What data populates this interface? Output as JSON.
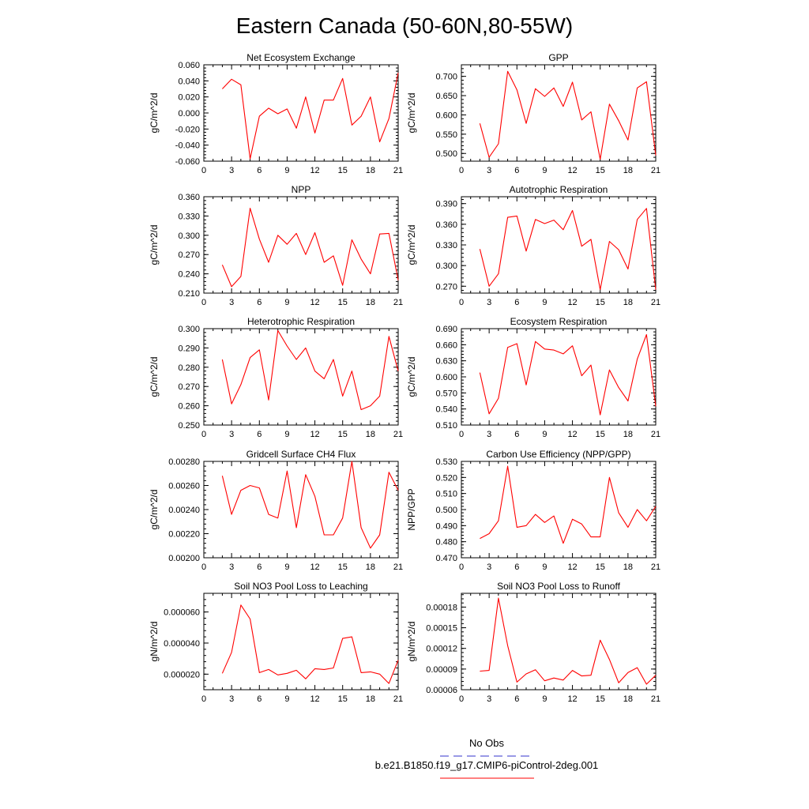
{
  "figure": {
    "title": "Eastern Canada (50-60N,80-55W)",
    "legend": {
      "placement": "bottom-right",
      "entries": [
        {
          "label": "No Obs",
          "color": "#3333cc",
          "dashed": true
        },
        {
          "label": "b.e21.B1850.f19_g17.CMIP6-piControl-2deg.001",
          "color": "#ff0000",
          "dashed": false
        }
      ]
    }
  },
  "chart_data": [
    {
      "type": "line",
      "title": "Net Ecosystem Exchange",
      "ylabel": "gC/m^2/d",
      "xlim": [
        0,
        21
      ],
      "xticks": [
        "0",
        "3",
        "6",
        "9",
        "12",
        "15",
        "18",
        "21"
      ],
      "ylim": [
        -0.06,
        0.06
      ],
      "yticks": [
        "-0.060",
        "-0.040",
        "-0.020",
        "0.000",
        "0.020",
        "0.040",
        "0.060"
      ],
      "series": [
        {
          "color": "#ff0000",
          "x": [
            2,
            3,
            4,
            5,
            6,
            7,
            8,
            9,
            10,
            11,
            12,
            13,
            14,
            15,
            16,
            17,
            18,
            19,
            20,
            21
          ],
          "y": [
            0.03,
            0.042,
            0.035,
            -0.057,
            -0.004,
            0.006,
            -0.001,
            0.005,
            -0.019,
            0.02,
            -0.025,
            0.016,
            0.016,
            0.043,
            -0.015,
            -0.004,
            0.02,
            -0.036,
            -0.007,
            0.05
          ]
        }
      ]
    },
    {
      "type": "line",
      "title": "GPP",
      "ylabel": "gC/m^2/d",
      "xlim": [
        0,
        21
      ],
      "xticks": [
        "0",
        "3",
        "6",
        "9",
        "12",
        "15",
        "18",
        "21"
      ],
      "ylim": [
        0.48,
        0.73
      ],
      "yticks": [
        "0.500",
        "0.550",
        "0.600",
        "0.650",
        "0.700"
      ],
      "series": [
        {
          "color": "#ff0000",
          "x": [
            2,
            3,
            4,
            5,
            6,
            7,
            8,
            9,
            10,
            11,
            12,
            13,
            14,
            15,
            16,
            17,
            18,
            19,
            20,
            21
          ],
          "y": [
            0.578,
            0.49,
            0.525,
            0.713,
            0.665,
            0.578,
            0.668,
            0.648,
            0.67,
            0.622,
            0.685,
            0.587,
            0.608,
            0.485,
            0.628,
            0.585,
            0.535,
            0.67,
            0.686,
            0.495
          ]
        }
      ]
    },
    {
      "type": "line",
      "title": "NPP",
      "ylabel": "gC/m^2/d",
      "xlim": [
        0,
        21
      ],
      "xticks": [
        "0",
        "3",
        "6",
        "9",
        "12",
        "15",
        "18",
        "21"
      ],
      "ylim": [
        0.21,
        0.36
      ],
      "yticks": [
        "0.210",
        "0.240",
        "0.270",
        "0.300",
        "0.330",
        "0.360"
      ],
      "series": [
        {
          "color": "#ff0000",
          "x": [
            2,
            3,
            4,
            5,
            6,
            7,
            8,
            9,
            10,
            11,
            12,
            13,
            14,
            15,
            16,
            17,
            18,
            19,
            20,
            21
          ],
          "y": [
            0.254,
            0.22,
            0.236,
            0.342,
            0.294,
            0.258,
            0.3,
            0.286,
            0.303,
            0.27,
            0.304,
            0.258,
            0.268,
            0.222,
            0.293,
            0.263,
            0.24,
            0.302,
            0.303,
            0.23
          ]
        }
      ]
    },
    {
      "type": "line",
      "title": "Autotrophic Respiration",
      "ylabel": "gC/m^2/d",
      "xlim": [
        0,
        21
      ],
      "xticks": [
        "0",
        "3",
        "6",
        "9",
        "12",
        "15",
        "18",
        "21"
      ],
      "ylim": [
        0.26,
        0.4
      ],
      "yticks": [
        "0.270",
        "0.300",
        "0.330",
        "0.360",
        "0.390"
      ],
      "series": [
        {
          "color": "#ff0000",
          "x": [
            2,
            3,
            4,
            5,
            6,
            7,
            8,
            9,
            10,
            11,
            12,
            13,
            14,
            15,
            16,
            17,
            18,
            19,
            20,
            21
          ],
          "y": [
            0.324,
            0.27,
            0.288,
            0.37,
            0.372,
            0.321,
            0.367,
            0.361,
            0.366,
            0.352,
            0.38,
            0.328,
            0.338,
            0.265,
            0.335,
            0.323,
            0.295,
            0.367,
            0.383,
            0.265
          ]
        }
      ]
    },
    {
      "type": "line",
      "title": "Heterotrophic Respiration",
      "ylabel": "gC/m^2/d",
      "xlim": [
        0,
        21
      ],
      "xticks": [
        "0",
        "3",
        "6",
        "9",
        "12",
        "15",
        "18",
        "21"
      ],
      "ylim": [
        0.25,
        0.3
      ],
      "yticks": [
        "0.250",
        "0.260",
        "0.270",
        "0.280",
        "0.290",
        "0.300"
      ],
      "series": [
        {
          "color": "#ff0000",
          "x": [
            2,
            3,
            4,
            5,
            6,
            7,
            8,
            9,
            10,
            11,
            12,
            13,
            14,
            15,
            16,
            17,
            18,
            19,
            20,
            21
          ],
          "y": [
            0.284,
            0.261,
            0.271,
            0.285,
            0.289,
            0.263,
            0.299,
            0.291,
            0.284,
            0.29,
            0.278,
            0.274,
            0.284,
            0.265,
            0.278,
            0.258,
            0.26,
            0.265,
            0.296,
            0.278
          ]
        }
      ]
    },
    {
      "type": "line",
      "title": "Ecosystem Respiration",
      "ylabel": "gC/m^2/d",
      "xlim": [
        0,
        21
      ],
      "xticks": [
        "0",
        "3",
        "6",
        "9",
        "12",
        "15",
        "18",
        "21"
      ],
      "ylim": [
        0.51,
        0.69
      ],
      "yticks": [
        "0.510",
        "0.540",
        "0.570",
        "0.600",
        "0.630",
        "0.660",
        "0.690"
      ],
      "series": [
        {
          "color": "#ff0000",
          "x": [
            2,
            3,
            4,
            5,
            6,
            7,
            8,
            9,
            10,
            11,
            12,
            13,
            14,
            15,
            16,
            17,
            18,
            19,
            20,
            21
          ],
          "y": [
            0.608,
            0.531,
            0.56,
            0.655,
            0.662,
            0.585,
            0.666,
            0.652,
            0.65,
            0.643,
            0.658,
            0.602,
            0.622,
            0.529,
            0.613,
            0.58,
            0.555,
            0.633,
            0.679,
            0.545
          ]
        }
      ]
    },
    {
      "type": "line",
      "title": "Gridcell Surface CH4 Flux",
      "ylabel": "gC/m^2/d",
      "xlim": [
        0,
        21
      ],
      "xticks": [
        "0",
        "3",
        "6",
        "9",
        "12",
        "15",
        "18",
        "21"
      ],
      "ylim": [
        0.002,
        0.0028
      ],
      "yticks": [
        "0.00200",
        "0.00220",
        "0.00240",
        "0.00260",
        "0.00280"
      ],
      "series": [
        {
          "color": "#ff0000",
          "x": [
            2,
            3,
            4,
            5,
            6,
            7,
            8,
            9,
            10,
            11,
            12,
            13,
            14,
            15,
            16,
            17,
            18,
            19,
            20,
            21
          ],
          "y": [
            0.00268,
            0.00236,
            0.00256,
            0.0026,
            0.00258,
            0.00236,
            0.00233,
            0.00272,
            0.00225,
            0.00269,
            0.00251,
            0.00219,
            0.00219,
            0.00233,
            0.0028,
            0.00225,
            0.00208,
            0.00219,
            0.00271,
            0.00256
          ]
        }
      ]
    },
    {
      "type": "line",
      "title": "Carbon Use Efficiency (NPP/GPP)",
      "ylabel": "NPP/GPP",
      "xlim": [
        0,
        21
      ],
      "xticks": [
        "0",
        "3",
        "6",
        "9",
        "12",
        "15",
        "18",
        "21"
      ],
      "ylim": [
        0.47,
        0.53
      ],
      "yticks": [
        "0.470",
        "0.480",
        "0.490",
        "0.500",
        "0.510",
        "0.520",
        "0.530"
      ],
      "series": [
        {
          "color": "#ff0000",
          "x": [
            2,
            3,
            4,
            5,
            6,
            7,
            8,
            9,
            10,
            11,
            12,
            13,
            14,
            15,
            16,
            17,
            18,
            19,
            20,
            21
          ],
          "y": [
            0.482,
            0.485,
            0.493,
            0.527,
            0.489,
            0.49,
            0.497,
            0.492,
            0.496,
            0.479,
            0.494,
            0.491,
            0.483,
            0.483,
            0.52,
            0.498,
            0.489,
            0.5,
            0.493,
            0.502
          ]
        }
      ]
    },
    {
      "type": "line",
      "title": "Soil NO3 Pool Loss to Leaching",
      "ylabel": "gN/m^2/d",
      "xlim": [
        0,
        21
      ],
      "xticks": [
        "0",
        "3",
        "6",
        "9",
        "12",
        "15",
        "18",
        "21"
      ],
      "ylim": [
        1e-05,
        7.2e-05
      ],
      "yticks": [
        "0.000020",
        "0.000040",
        "0.000060"
      ],
      "series": [
        {
          "color": "#ff0000",
          "x": [
            2,
            3,
            4,
            5,
            6,
            7,
            8,
            9,
            10,
            11,
            12,
            13,
            14,
            15,
            16,
            17,
            18,
            19,
            20,
            21
          ],
          "y": [
            2.05e-05,
            3.4e-05,
            6.45e-05,
            5.55e-05,
            2.1e-05,
            2.3e-05,
            1.95e-05,
            2.05e-05,
            2.25e-05,
            1.7e-05,
            2.35e-05,
            2.3e-05,
            2.4e-05,
            4.3e-05,
            4.4e-05,
            2.1e-05,
            2.15e-05,
            2e-05,
            1.4e-05,
            2.9e-05
          ]
        }
      ]
    },
    {
      "type": "line",
      "title": "Soil NO3 Pool Loss to Runoff",
      "ylabel": "gN/m^2/d",
      "xlim": [
        0,
        21
      ],
      "xticks": [
        "0",
        "3",
        "6",
        "9",
        "12",
        "15",
        "18",
        "21"
      ],
      "ylim": [
        6e-05,
        0.0002
      ],
      "yticks": [
        "0.00006",
        "0.00009",
        "0.00012",
        "0.00015",
        "0.00018"
      ],
      "series": [
        {
          "color": "#ff0000",
          "x": [
            2,
            3,
            4,
            5,
            6,
            7,
            8,
            9,
            10,
            11,
            12,
            13,
            14,
            15,
            16,
            17,
            18,
            19,
            20,
            21
          ],
          "y": [
            8.7e-05,
            8.8e-05,
            0.000193,
            0.000124,
            7.1e-05,
            8.3e-05,
            8.9e-05,
            7.3e-05,
            7.7e-05,
            7.4e-05,
            8.8e-05,
            8e-05,
            8.1e-05,
            0.000132,
            0.000104,
            7e-05,
            8.5e-05,
            9.2e-05,
            6.8e-05,
            8.1e-05
          ]
        }
      ]
    }
  ]
}
